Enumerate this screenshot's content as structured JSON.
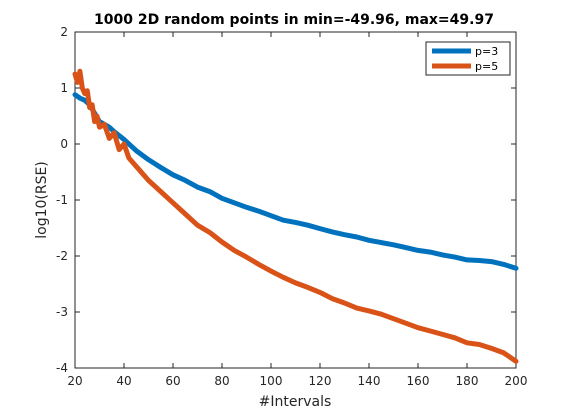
{
  "chart_data": {
    "type": "line",
    "title": "1000 2D random points in min=-49.96, max=49.97",
    "xlabel": "#Intervals",
    "ylabel": "log10(RSE)",
    "xlim": [
      20,
      200
    ],
    "ylim": [
      -4,
      2
    ],
    "xticks": [
      20,
      40,
      60,
      80,
      100,
      120,
      140,
      160,
      180,
      200
    ],
    "yticks": [
      2,
      1,
      0,
      -1,
      -2,
      -3,
      -4
    ],
    "grid": false,
    "legend_position": "top-right",
    "series": [
      {
        "name": "p=3",
        "color": "#0072BD",
        "x": [
          20,
          22,
          24,
          26,
          28,
          30,
          32,
          34,
          36,
          38,
          40,
          45,
          50,
          55,
          60,
          65,
          70,
          75,
          80,
          85,
          90,
          95,
          100,
          105,
          110,
          115,
          120,
          125,
          130,
          135,
          140,
          145,
          150,
          155,
          160,
          165,
          170,
          175,
          180,
          185,
          190,
          195,
          200
        ],
        "values": [
          0.88,
          0.82,
          0.78,
          0.7,
          0.55,
          0.4,
          0.35,
          0.3,
          0.22,
          0.15,
          0.08,
          -0.12,
          -0.28,
          -0.42,
          -0.55,
          -0.65,
          -0.77,
          -0.85,
          -0.97,
          -1.05,
          -1.13,
          -1.2,
          -1.28,
          -1.36,
          -1.4,
          -1.45,
          -1.51,
          -1.57,
          -1.62,
          -1.66,
          -1.72,
          -1.76,
          -1.8,
          -1.85,
          -1.9,
          -1.93,
          -1.98,
          -2.02,
          -2.07,
          -2.08,
          -2.1,
          -2.15,
          -2.22
        ]
      },
      {
        "name": "p=5",
        "color": "#D95319",
        "x": [
          20,
          21,
          22,
          23,
          24,
          25,
          26,
          27,
          28,
          29,
          30,
          32,
          34,
          36,
          38,
          40,
          42,
          44,
          46,
          48,
          50,
          55,
          60,
          65,
          70,
          75,
          80,
          85,
          90,
          95,
          100,
          105,
          110,
          115,
          120,
          125,
          130,
          135,
          140,
          145,
          150,
          155,
          160,
          165,
          170,
          175,
          180,
          185,
          190,
          195,
          200
        ],
        "values": [
          1.25,
          1.1,
          1.3,
          1.0,
          0.9,
          0.95,
          0.65,
          0.7,
          0.4,
          0.5,
          0.3,
          0.35,
          0.1,
          0.2,
          -0.1,
          0.0,
          -0.25,
          -0.35,
          -0.45,
          -0.55,
          -0.65,
          -0.85,
          -1.05,
          -1.25,
          -1.45,
          -1.58,
          -1.75,
          -1.9,
          -2.02,
          -2.15,
          -2.27,
          -2.38,
          -2.48,
          -2.56,
          -2.65,
          -2.76,
          -2.84,
          -2.93,
          -2.98,
          -3.04,
          -3.12,
          -3.2,
          -3.28,
          -3.34,
          -3.4,
          -3.46,
          -3.55,
          -3.58,
          -3.65,
          -3.73,
          -3.88
        ]
      }
    ]
  }
}
